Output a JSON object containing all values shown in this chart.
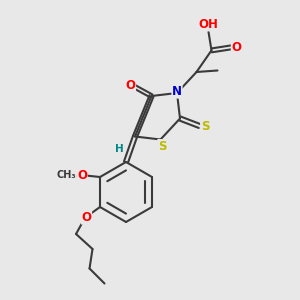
{
  "bg_color": "#e8e8e8",
  "bond_color": "#3a3a3a",
  "bond_width": 1.5,
  "atom_colors": {
    "O": "#ff0000",
    "N": "#0000cc",
    "S": "#bbbb00",
    "H": "#008888",
    "C": "#3a3a3a"
  },
  "font_size": 8.5,
  "fig_width": 3.0,
  "fig_height": 3.0,
  "dpi": 100
}
